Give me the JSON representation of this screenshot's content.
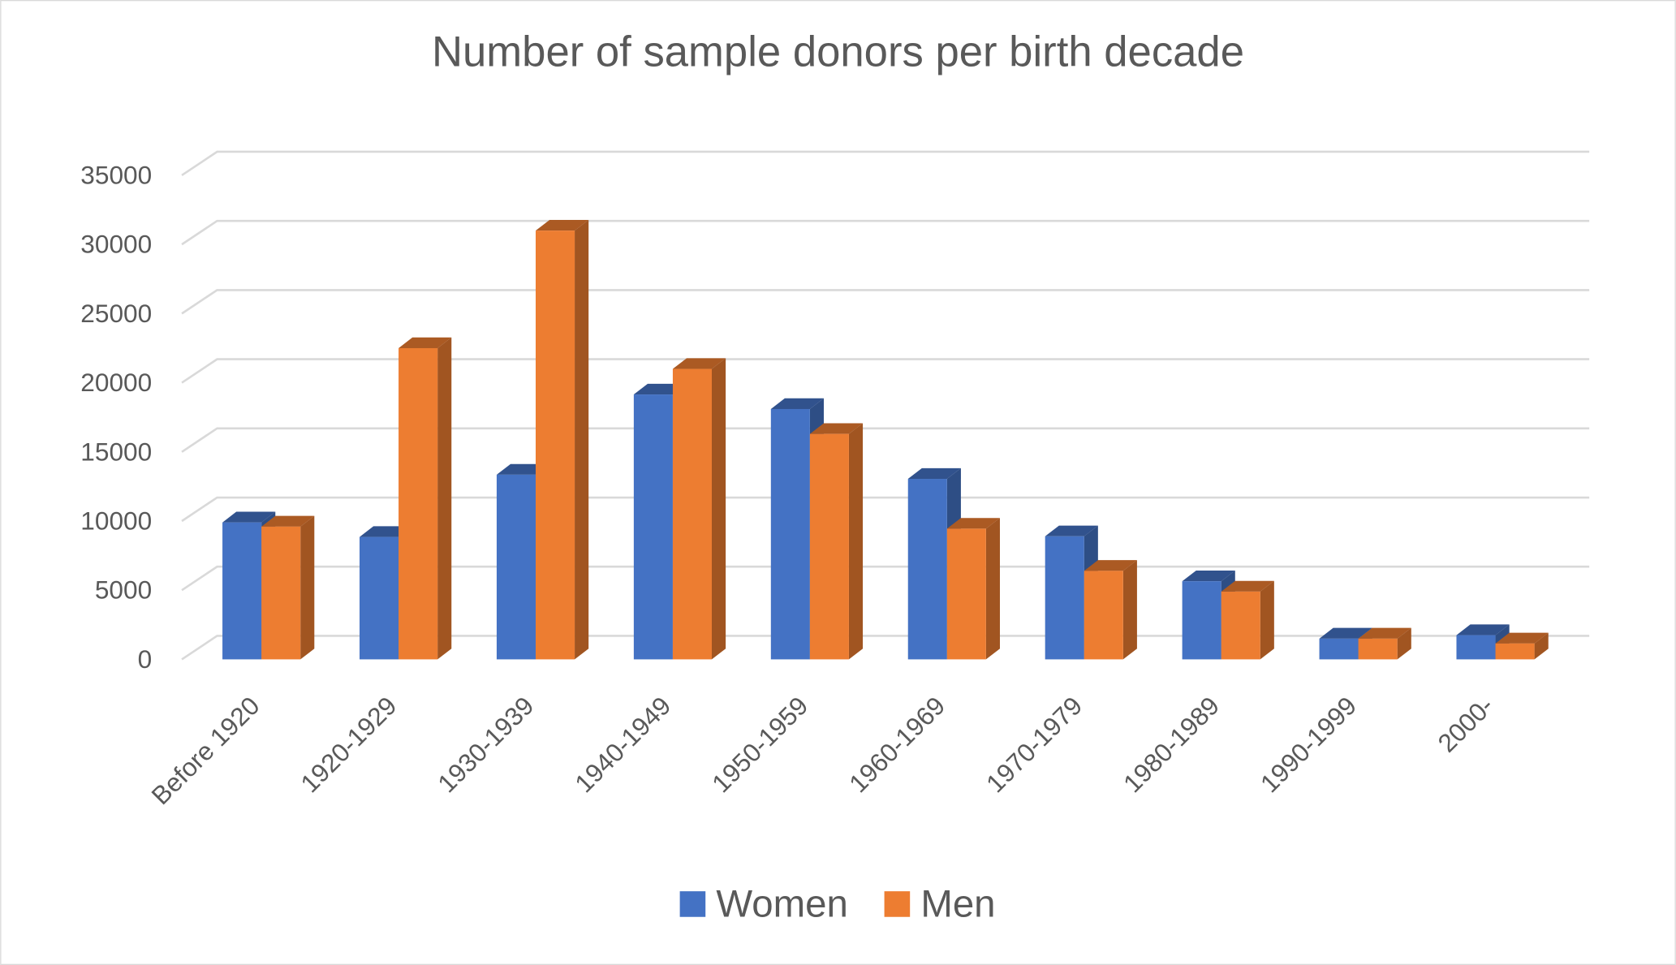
{
  "chart_data": {
    "type": "bar3d",
    "title": "Number of sample donors per birth decade",
    "categories": [
      "Before 1920",
      "1920-1929",
      "1930-1939",
      "1940-1949",
      "1950-1959",
      "1960-1969",
      "1970-1979",
      "1980-1989",
      "1990-1999",
      "2000-"
    ],
    "series": [
      {
        "name": "Women",
        "color": "#4472c4",
        "values": [
          9900,
          8850,
          13350,
          19150,
          18100,
          13050,
          8900,
          5650,
          1500,
          1750
        ]
      },
      {
        "name": "Men",
        "color": "#ed7d31",
        "values": [
          9600,
          22500,
          31000,
          21000,
          16300,
          9450,
          6400,
          4900,
          1500,
          1150
        ]
      }
    ],
    "ylim": [
      0,
      35000
    ],
    "yticks": [
      0,
      5000,
      10000,
      15000,
      20000,
      25000,
      30000,
      35000
    ],
    "grid": true,
    "legend": "bottom"
  }
}
